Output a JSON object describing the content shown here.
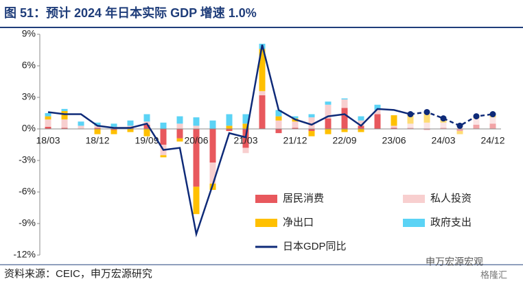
{
  "chart_data": {
    "type": "stacked-bar-line",
    "title": "图 51：预计 2024 年日本实际 GDP 增速 1.0%",
    "source": "资料来源：CEIC，申万宏源研究",
    "watermark": [
      "申万宏源宏观",
      "格隆汇"
    ],
    "categories": [
      "18/03",
      null,
      null,
      "18/12",
      null,
      null,
      "19/09",
      null,
      null,
      "20/06",
      null,
      null,
      "21/03",
      null,
      null,
      "21/12",
      null,
      null,
      "22/09",
      null,
      null,
      "23/06",
      null,
      null,
      "24/03",
      null,
      null,
      "24/12"
    ],
    "series": [
      {
        "name": "居民消费",
        "color": "#e8585d",
        "kind": "bar",
        "values": [
          0.2,
          0.1,
          0.0,
          0.1,
          -0.1,
          0.1,
          0.4,
          -1.5,
          -0.9,
          -5.5,
          -3.2,
          -0.2,
          -1.8,
          3.2,
          -0.4,
          0.1,
          -0.2,
          1.0,
          2.0,
          0.3,
          1.4,
          0.1,
          0.1,
          -0.1,
          0.1,
          -0.2,
          0.4,
          0.5
        ]
      },
      {
        "name": "私人投资",
        "color": "#f8cfcf",
        "kind": "bar",
        "values": [
          0.7,
          0.8,
          0.3,
          0.2,
          0.2,
          0.2,
          0.3,
          -1.0,
          0.5,
          0.3,
          -2.0,
          0.0,
          -0.5,
          0.4,
          0.8,
          0.6,
          1.1,
          1.3,
          0.8,
          0.5,
          0.4,
          0.2,
          0.4,
          0.6,
          0.5,
          0.3,
          0.6,
          0.6
        ]
      },
      {
        "name": "净出口",
        "color": "#ffc000",
        "kind": "bar",
        "values": [
          0.3,
          0.8,
          0.0,
          -0.5,
          -0.4,
          -0.3,
          -0.7,
          -0.2,
          -0.3,
          -2.6,
          -0.6,
          0.3,
          0.5,
          4.0,
          0.4,
          0.3,
          -0.5,
          -0.5,
          -0.3,
          -0.3,
          0.0,
          1.0,
          0.9,
          1.0,
          0.5,
          -0.3,
          0.2,
          0.2
        ]
      },
      {
        "name": "政府支出",
        "color": "#5bd3f5",
        "kind": "bar",
        "values": [
          0.3,
          0.2,
          0.4,
          0.3,
          0.3,
          0.5,
          0.7,
          0.6,
          0.7,
          0.8,
          0.8,
          1.1,
          0.9,
          0.5,
          0.6,
          0.2,
          0.3,
          0.3,
          0.1,
          0.4,
          0.5,
          0.0,
          0.1,
          0.1,
          0.1,
          0.1,
          0.1,
          0.1
        ]
      },
      {
        "name": "日本GDP同比",
        "color": "#0e2a78",
        "kind": "line",
        "values": [
          1.6,
          1.4,
          1.4,
          0.3,
          0.1,
          0.1,
          0.5,
          -2.0,
          -1.8,
          -10.0,
          -5.3,
          -0.4,
          -0.8,
          8.0,
          1.8,
          0.9,
          0.4,
          1.2,
          1.4,
          0.3,
          1.9,
          1.8,
          1.4,
          1.6,
          1.0,
          0.3,
          1.2,
          1.4
        ]
      }
    ],
    "dash_from": 22,
    "ylim": [
      -12,
      9
    ],
    "yticks": [
      {
        "value": -12,
        "label": "-12%"
      },
      {
        "value": -9,
        "label": "-9%"
      },
      {
        "value": -6,
        "label": "-6%"
      },
      {
        "value": -3,
        "label": "-3%"
      },
      {
        "value": 0,
        "label": "0%"
      },
      {
        "value": 3,
        "label": "3%"
      },
      {
        "value": 6,
        "label": "6%"
      },
      {
        "value": 9,
        "label": "9%"
      }
    ]
  }
}
